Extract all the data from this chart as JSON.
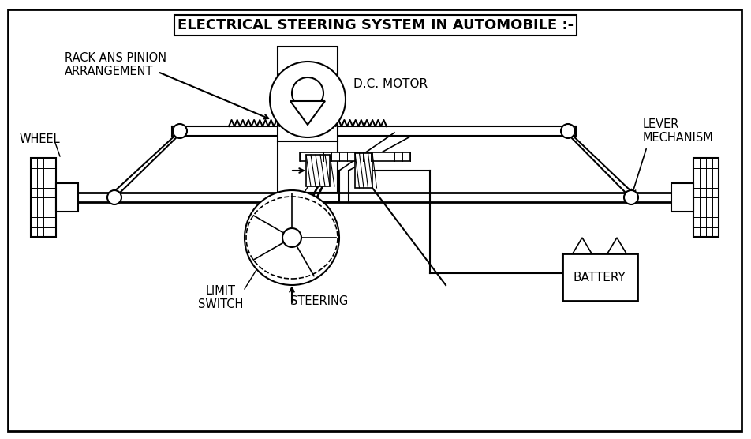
{
  "title": "ELECTRICAL STEERING SYSTEM IN AUTOMOBILE :-",
  "bg_color": "#ffffff",
  "line_color": "#000000",
  "fig_width": 9.52,
  "fig_height": 5.56,
  "labels": {
    "rack": "RACK ANS PINION\nARRANGEMENT",
    "wheel": "WHEEL",
    "lever": "LEVER\nMECHANISM",
    "motor": "D.C. MOTOR",
    "limit": "LIMIT\nSWITCH",
    "steering": "STEERING",
    "battery": "BATTERY"
  }
}
